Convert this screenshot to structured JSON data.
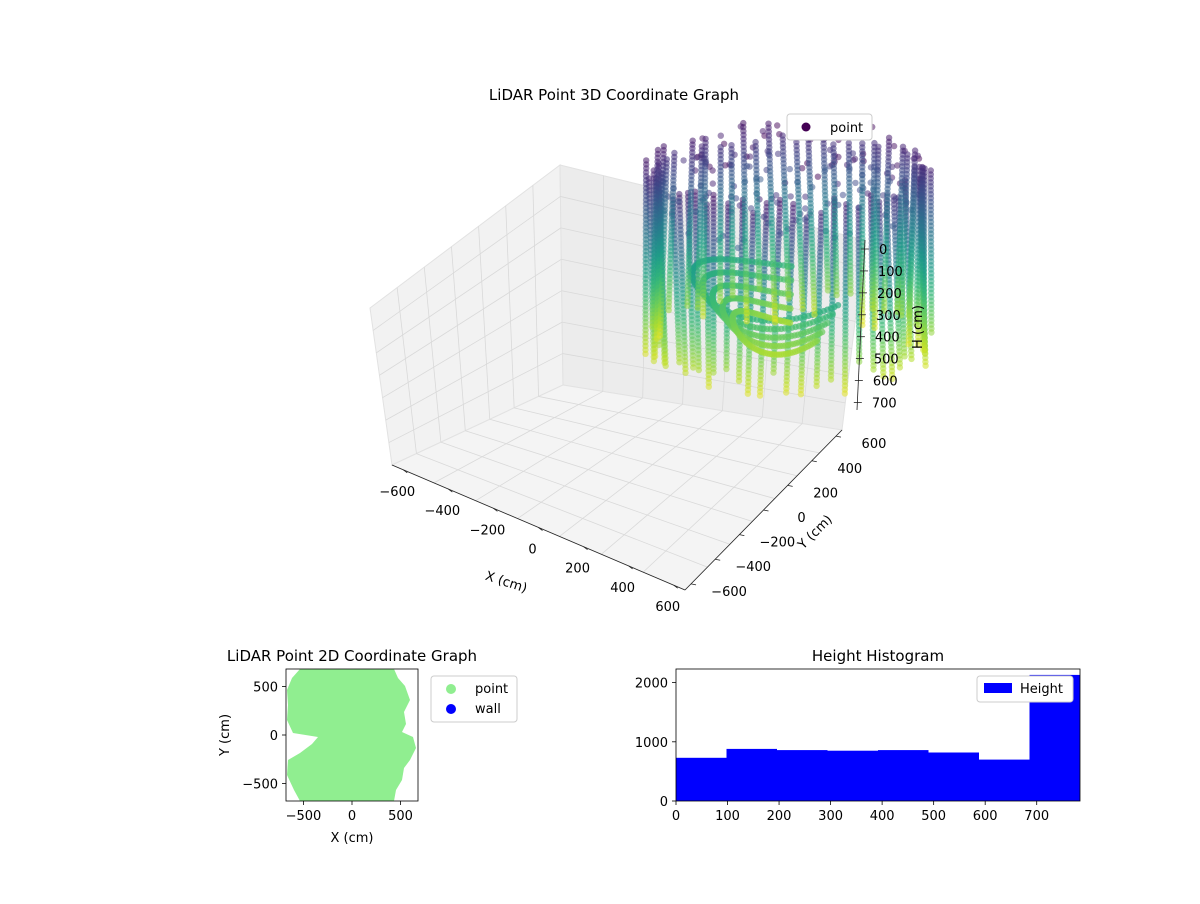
{
  "chart_data": [
    {
      "type": "scatter3d",
      "title": "LiDAR Point 3D Coordinate Graph",
      "xlabel": "X (cm)",
      "ylabel": "Y (cm)",
      "zlabel": "H (cm)",
      "xlim": [
        -650,
        650
      ],
      "ylim": [
        -650,
        650
      ],
      "zlim": [
        0,
        780
      ],
      "z_inverted": true,
      "x_ticks": [
        "−600",
        "−400",
        "−200",
        "0",
        "200",
        "400",
        "600"
      ],
      "y_ticks": [
        "−600",
        "−400",
        "−200",
        "0",
        "200",
        "400",
        "600"
      ],
      "z_ticks": [
        "0",
        "100",
        "200",
        "300",
        "400",
        "500",
        "600",
        "700"
      ],
      "legend": {
        "entries": [
          "point"
        ],
        "position": "upper-right"
      },
      "colormap": "viridis",
      "colors": {
        "marker": "#440154",
        "pane": "#f2f2f2",
        "grid": "#d9d9d9"
      }
    },
    {
      "type": "scatter",
      "title": "LiDAR Point 2D Coordinate Graph",
      "xlabel": "X (cm)",
      "ylabel": "Y (cm)",
      "xlim": [
        -680,
        680
      ],
      "ylim": [
        -680,
        680
      ],
      "x_ticks": [
        -500,
        0,
        500
      ],
      "y_ticks": [
        -500,
        0,
        500
      ],
      "series": [
        {
          "name": "point",
          "color": "#90ee90"
        },
        {
          "name": "wall",
          "color": "#0000ff"
        }
      ],
      "legend": {
        "position": "outside-right"
      }
    },
    {
      "type": "bar",
      "title": "Height Histogram",
      "bin_edges": [
        0,
        98,
        196,
        294,
        392,
        490,
        588,
        686,
        784
      ],
      "values": [
        730,
        880,
        860,
        850,
        860,
        820,
        700,
        2130
      ],
      "xlim": [
        0,
        784
      ],
      "ylim": [
        0,
        2230
      ],
      "x_ticks": [
        0,
        100,
        200,
        300,
        400,
        500,
        600,
        700
      ],
      "y_ticks": [
        0,
        1000,
        2000
      ],
      "series": [
        {
          "name": "Height",
          "color": "#0000ff"
        }
      ],
      "legend": {
        "position": "upper-right"
      }
    }
  ]
}
